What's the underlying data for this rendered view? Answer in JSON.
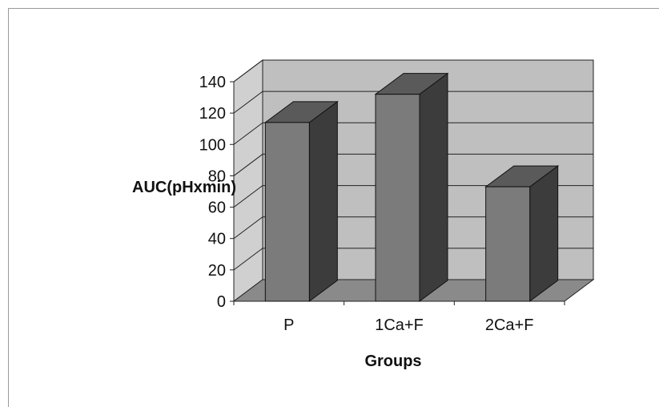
{
  "chart_data": {
    "type": "bar",
    "style": "3d-column",
    "categories": [
      "P",
      "1Ca+F",
      "2Ca+F"
    ],
    "values": [
      114,
      132,
      73
    ],
    "xlabel": "Groups",
    "ylabel": "AUC(pHxmin)",
    "ylim": [
      0,
      140
    ],
    "yticks": [
      0,
      20,
      40,
      60,
      80,
      100,
      120,
      140
    ],
    "grid": true,
    "colors": {
      "bar_front": "#7b7b7b",
      "bar_side": "#3c3c3c",
      "bar_top": "#5a5a5a",
      "back_wall": "#bfbfbf",
      "side_wall": "#d0d0d0",
      "floor": "#8a8a8a"
    }
  }
}
